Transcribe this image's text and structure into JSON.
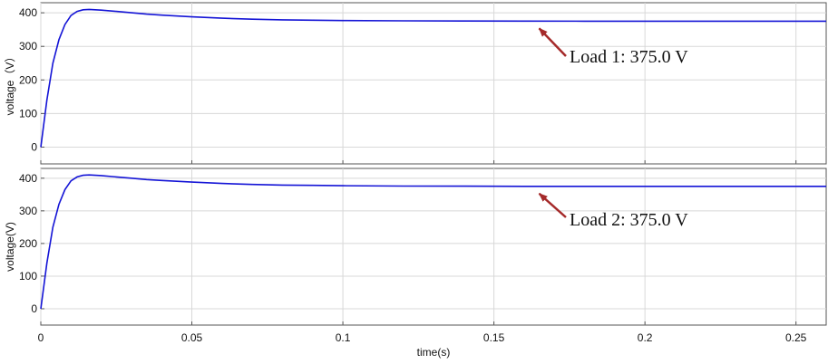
{
  "chart_data": [
    {
      "type": "line",
      "xlabel": "",
      "ylabel": "voltage（V）",
      "xlim": [
        0,
        0.26
      ],
      "ylim": [
        -50,
        430
      ],
      "x_ticks": [
        0,
        0.05,
        0.1,
        0.15,
        0.2,
        0.25
      ],
      "x_tick_labels": [],
      "y_ticks": [
        0,
        100,
        200,
        300,
        400
      ],
      "y_tick_labels": [
        "0",
        "100",
        "200",
        "300",
        "400"
      ],
      "grid": true,
      "series": [
        {
          "color": "#1414d6",
          "x": [
            0,
            0.002,
            0.004,
            0.006,
            0.008,
            0.01,
            0.012,
            0.014,
            0.016,
            0.018,
            0.02,
            0.025,
            0.03,
            0.035,
            0.04,
            0.05,
            0.06,
            0.07,
            0.08,
            0.09,
            0.1,
            0.12,
            0.14,
            0.16,
            0.18,
            0.2,
            0.22,
            0.24,
            0.26
          ],
          "y": [
            0,
            140,
            250,
            320,
            365,
            392,
            404,
            409,
            410,
            409,
            408,
            404,
            400,
            396,
            393,
            388,
            384,
            381,
            379,
            378,
            377,
            376,
            375.5,
            375.2,
            375,
            375,
            375,
            375,
            375
          ]
        }
      ],
      "annotations": [
        {
          "text": "Load 1: 375.0 V",
          "arrow_to_x": 0.165,
          "arrow_to_y": 375,
          "color": "#a52a2a"
        }
      ]
    },
    {
      "type": "line",
      "xlabel": "time(s)",
      "ylabel": "voltage(V)",
      "xlim": [
        0,
        0.26
      ],
      "ylim": [
        -50,
        430
      ],
      "x_ticks": [
        0,
        0.05,
        0.1,
        0.15,
        0.2,
        0.25
      ],
      "x_tick_labels": [
        "0",
        "0.05",
        "0.1",
        "0.15",
        "0.2",
        "0.25"
      ],
      "y_ticks": [
        0,
        100,
        200,
        300,
        400
      ],
      "y_tick_labels": [
        "0",
        "100",
        "200",
        "300",
        "400"
      ],
      "grid": true,
      "series": [
        {
          "color": "#1414d6",
          "x": [
            0,
            0.002,
            0.004,
            0.006,
            0.008,
            0.01,
            0.012,
            0.014,
            0.016,
            0.018,
            0.02,
            0.025,
            0.03,
            0.035,
            0.04,
            0.05,
            0.06,
            0.07,
            0.08,
            0.09,
            0.1,
            0.12,
            0.14,
            0.16,
            0.18,
            0.2,
            0.22,
            0.24,
            0.26
          ],
          "y": [
            0,
            140,
            250,
            320,
            365,
            392,
            404,
            409,
            410,
            409,
            408,
            404,
            400,
            396,
            393,
            388,
            384,
            381,
            379,
            378,
            377,
            376,
            375.5,
            375.2,
            375,
            375,
            375,
            375,
            375
          ]
        }
      ],
      "annotations": [
        {
          "text": "Load 2: 375.0 V",
          "arrow_to_x": 0.165,
          "arrow_to_y": 375,
          "color": "#a52a2a"
        }
      ]
    }
  ]
}
